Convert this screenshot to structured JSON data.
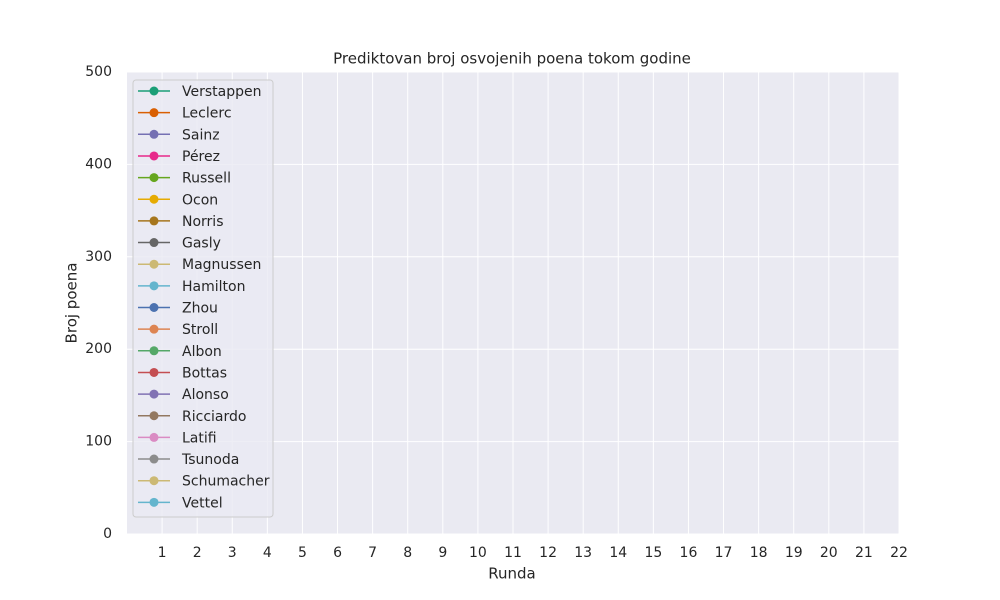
{
  "chart_data": {
    "type": "line",
    "title": "Prediktovan broj osvojenih poena tokom godine",
    "xlabel": "Runda",
    "ylabel": "Broj poena",
    "x": [],
    "series": [
      {
        "name": "Verstappen",
        "color": "#1b9e77",
        "values": []
      },
      {
        "name": "Leclerc",
        "color": "#d95f02",
        "values": []
      },
      {
        "name": "Sainz",
        "color": "#7570b3",
        "values": []
      },
      {
        "name": "Pérez",
        "color": "#e7298a",
        "values": []
      },
      {
        "name": "Russell",
        "color": "#66a61e",
        "values": []
      },
      {
        "name": "Ocon",
        "color": "#e6ab02",
        "values": []
      },
      {
        "name": "Norris",
        "color": "#a6761d",
        "values": []
      },
      {
        "name": "Gasly",
        "color": "#666666",
        "values": []
      },
      {
        "name": "Magnussen",
        "color": "#ccb974",
        "values": []
      },
      {
        "name": "Hamilton",
        "color": "#64b5cd",
        "values": []
      },
      {
        "name": "Zhou",
        "color": "#4c72b0",
        "values": []
      },
      {
        "name": "Stroll",
        "color": "#dd8452",
        "values": []
      },
      {
        "name": "Albon",
        "color": "#55a868",
        "values": []
      },
      {
        "name": "Bottas",
        "color": "#c44e52",
        "values": []
      },
      {
        "name": "Alonso",
        "color": "#8172b3",
        "values": []
      },
      {
        "name": "Ricciardo",
        "color": "#937860",
        "values": []
      },
      {
        "name": "Latifi",
        "color": "#da8bc3",
        "values": []
      },
      {
        "name": "Tsunoda",
        "color": "#8c8c8c",
        "values": []
      },
      {
        "name": "Schumacher",
        "color": "#ccb974",
        "values": []
      },
      {
        "name": "Vettel",
        "color": "#64b5cd",
        "values": []
      }
    ],
    "xlim": [
      0,
      22
    ],
    "xticks": [
      1,
      2,
      3,
      4,
      5,
      6,
      7,
      8,
      9,
      10,
      11,
      12,
      13,
      14,
      15,
      16,
      17,
      18,
      19,
      20,
      21,
      22
    ],
    "ylim": [
      0,
      500
    ],
    "yticks": [
      0,
      100,
      200,
      300,
      400,
      500
    ],
    "grid": true,
    "legend": "upper left"
  }
}
